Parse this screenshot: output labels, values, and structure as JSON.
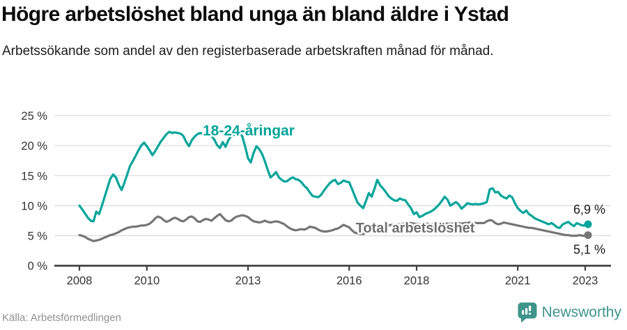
{
  "footer": {
    "brand": "Newsworthy"
  },
  "chart_data": {
    "type": "line",
    "title": "Högre arbetslöshet bland unga än bland äldre i Ystad",
    "subtitle": "Arbetssökande som andel av den registerbaserade arbetskraften månad för månad.",
    "source": "Källa: Arbetsförmedlingen",
    "unit": "%",
    "x_start": "2008-01",
    "x_end": "2023-02",
    "interval": "monthly",
    "ylim": [
      0,
      25
    ],
    "grid": "horizontal",
    "xticks": [
      2008,
      2010,
      2013,
      2016,
      2018,
      2021,
      2023
    ],
    "yticks": [
      {
        "value": 0,
        "label": "0 %"
      },
      {
        "value": 5,
        "label": "5 %"
      },
      {
        "value": 10,
        "label": "10 %"
      },
      {
        "value": 15,
        "label": "15 %"
      },
      {
        "value": 20,
        "label": "20 %"
      },
      {
        "value": 25,
        "label": "25 %"
      }
    ],
    "colors": {
      "grid": "#dcdcdc",
      "axis": "#3c3c3c",
      "tick_text": "#333333"
    },
    "series": [
      {
        "name": "18-24-åringar",
        "color": "#00a49a",
        "end_label": "6,9 %",
        "last_value": 6.9,
        "label_anchor": {
          "year": 2013.02,
          "pct": 21.7
        },
        "values": [
          10.0,
          9.4,
          8.7,
          8.0,
          7.5,
          7.4,
          9.0,
          8.6,
          10.0,
          11.5,
          13.0,
          14.5,
          15.2,
          14.7,
          13.5,
          12.6,
          13.8,
          15.2,
          16.6,
          17.4,
          18.3,
          19.2,
          20.0,
          20.5,
          19.9,
          19.2,
          18.4,
          19.1,
          19.9,
          20.7,
          21.3,
          21.9,
          22.3,
          22.1,
          22.2,
          22.1,
          22.0,
          21.6,
          20.6,
          19.9,
          20.9,
          21.5,
          21.9,
          22.1,
          21.9,
          21.7,
          21.9,
          21.6,
          21.0,
          20.1,
          19.6,
          20.6,
          19.8,
          20.9,
          21.6,
          21.8,
          22.0,
          22.2,
          21.5,
          19.8,
          17.9,
          17.2,
          18.8,
          19.9,
          19.4,
          18.6,
          17.4,
          16.0,
          14.7,
          15.1,
          15.6,
          14.7,
          14.3,
          14.0,
          14.1,
          14.5,
          14.7,
          14.4,
          14.3,
          13.9,
          13.3,
          12.9,
          12.2,
          11.6,
          11.5,
          11.4,
          11.8,
          12.5,
          13.1,
          13.7,
          14.1,
          14.3,
          13.6,
          13.8,
          14.2,
          14.0,
          13.9,
          12.8,
          11.6,
          10.5,
          10.0,
          9.6,
          10.8,
          12.1,
          11.5,
          12.8,
          14.3,
          13.4,
          12.9,
          12.3,
          11.6,
          11.2,
          10.9,
          10.8,
          11.2,
          11.0,
          10.9,
          10.2,
          9.6,
          8.6,
          8.9,
          8.1,
          8.3,
          8.6,
          8.8,
          9.0,
          9.3,
          9.7,
          10.2,
          10.8,
          11.5,
          11.0,
          10.0,
          10.3,
          10.6,
          10.2,
          9.5,
          9.9,
          10.4,
          10.3,
          10.2,
          10.3,
          10.2,
          10.3,
          10.4,
          10.6,
          12.7,
          12.9,
          12.2,
          12.3,
          11.7,
          11.4,
          11.2,
          11.7,
          11.4,
          10.4,
          9.6,
          9.1,
          8.8,
          9.2,
          8.6,
          8.3,
          7.9,
          7.7,
          7.5,
          7.3,
          7.1,
          6.9,
          7.1,
          6.8,
          6.4,
          6.3,
          6.9,
          7.1,
          7.3,
          6.9,
          6.6,
          7.1,
          6.9,
          6.7,
          6.7,
          6.9
        ]
      },
      {
        "name": "Total arbetslöshet",
        "color": "#757575",
        "label_color": "#6f6f6f",
        "end_label": "5,1 %",
        "last_value": 5.1,
        "label_anchor": {
          "year": 2017.96,
          "pct": 5.5
        },
        "values": [
          5.1,
          5.0,
          4.8,
          4.5,
          4.3,
          4.1,
          4.2,
          4.3,
          4.5,
          4.7,
          4.9,
          5.1,
          5.2,
          5.4,
          5.6,
          5.9,
          6.1,
          6.3,
          6.4,
          6.5,
          6.5,
          6.6,
          6.7,
          6.7,
          6.8,
          7.0,
          7.4,
          7.9,
          8.2,
          8.0,
          7.6,
          7.3,
          7.5,
          7.8,
          8.0,
          7.8,
          7.5,
          7.4,
          7.7,
          8.1,
          8.2,
          7.9,
          7.4,
          7.3,
          7.6,
          7.8,
          7.7,
          7.5,
          7.9,
          8.3,
          8.6,
          8.1,
          7.6,
          7.4,
          7.5,
          7.9,
          8.2,
          8.3,
          8.4,
          8.3,
          8.1,
          7.7,
          7.4,
          7.3,
          7.2,
          7.3,
          7.5,
          7.3,
          7.2,
          7.3,
          7.4,
          7.3,
          7.1,
          6.9,
          6.5,
          6.2,
          6.0,
          5.9,
          6.0,
          6.1,
          6.0,
          6.2,
          6.5,
          6.4,
          6.3,
          6.0,
          5.8,
          5.7,
          5.7,
          5.8,
          5.9,
          6.1,
          6.2,
          6.5,
          6.8,
          6.6,
          6.4,
          5.9,
          5.5,
          5.4,
          5.3,
          5.3,
          5.5,
          5.7,
          5.9,
          6.1,
          6.3,
          6.4,
          6.5,
          6.6,
          6.7,
          6.8,
          6.8,
          6.9,
          6.9,
          7.0,
          7.0,
          7.1,
          7.1,
          7.0,
          7.0,
          6.9,
          6.9,
          7.0,
          7.0,
          6.9,
          6.9,
          7.0,
          7.0,
          7.1,
          7.1,
          7.0,
          7.0,
          7.0,
          7.1,
          7.1,
          7.0,
          7.1,
          7.1,
          7.2,
          7.2,
          7.1,
          7.1,
          7.1,
          7.1,
          7.4,
          7.6,
          7.5,
          7.1,
          6.9,
          7.0,
          7.2,
          7.1,
          7.0,
          6.9,
          6.8,
          6.7,
          6.6,
          6.5,
          6.4,
          6.3,
          6.3,
          6.2,
          6.1,
          6.0,
          5.9,
          5.8,
          5.7,
          5.6,
          5.5,
          5.4,
          5.3,
          5.2,
          5.1,
          5.1,
          5.0,
          5.0,
          5.0,
          5.1,
          5.0,
          5.0,
          5.1
        ]
      }
    ]
  }
}
